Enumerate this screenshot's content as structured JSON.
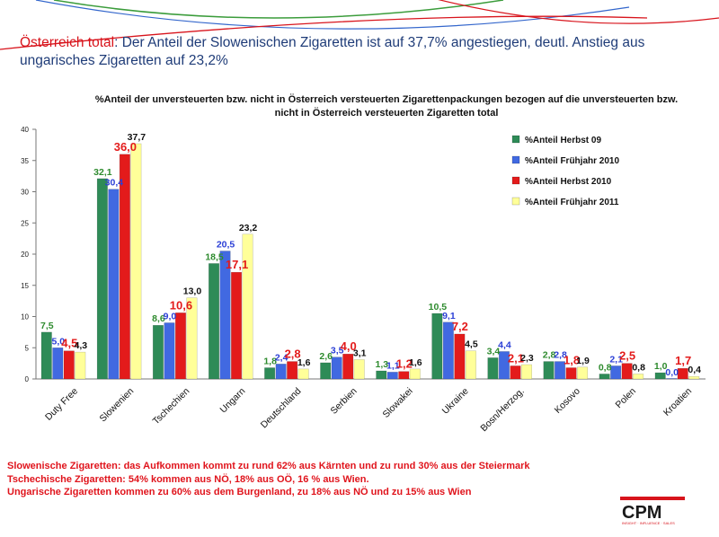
{
  "headline": {
    "accent": "Österreich total",
    "text": ": Der Anteil der Slowenischen Zigaretten  ist auf 37,7% angestiegen, deutl. Anstieg aus ungarisches Zigaretten auf 23,2%"
  },
  "notes": [
    "Slowenische Zigaretten: das Aufkommen kommt zu rund 62% aus Kärnten und zu rund 30% aus der Steiermark",
    "Tschechische Zigaretten: 54% kommen aus NÖ, 18% aus OÖ, 16 % aus Wien.",
    "Ungarische Zigaretten kommen zu 60% aus dem Burgenland, zu 18% aus NÖ  und zu 15% aus Wien"
  ],
  "logo": {
    "text": "CPM",
    "tagline": "INSIGHT · INFLUENCE · SALES"
  },
  "colors": {
    "headline": "#1f3c78",
    "accent": "#d8141c"
  },
  "chart_data": {
    "type": "bar",
    "title": "%Anteil der unversteuerten bzw. nicht in Österreich versteuerten Zigarettenpackungen bezogen auf die unversteuerten bzw. nicht in Österreich versteuerten Zigaretten total",
    "xlabel": "",
    "ylabel": "",
    "ylim": [
      0,
      40
    ],
    "yticks": [
      0,
      5,
      10,
      15,
      20,
      25,
      30,
      35,
      40
    ],
    "grid": false,
    "legend_position": "top-right",
    "categories": [
      "Duty Free",
      "Slowenien",
      "Tschechien",
      "Ungarn",
      "Deutschland",
      "Serbien",
      "Slowakei",
      "Ukraine",
      "Bosn/Herzog.",
      "Kosovo",
      "Polen",
      "Kroatien"
    ],
    "series": [
      {
        "name": "%Anteil Herbst 09",
        "color": "#2e8b57",
        "label_color": "#2e8b2e",
        "values": [
          7.5,
          32.1,
          8.6,
          18.5,
          1.8,
          2.6,
          1.3,
          10.5,
          3.4,
          2.8,
          0.8,
          1.0
        ],
        "labels": [
          "7,5",
          "32,1",
          "8,6",
          "18,5",
          "1,8",
          "2,6",
          "1,3",
          "10,5",
          "3,4",
          "2,8",
          "0,8",
          "1,0"
        ]
      },
      {
        "name": "%Anteil Frühjahr 2010",
        "color": "#4169e1",
        "label_color": "#2b3fd6",
        "values": [
          5.0,
          30.4,
          9.0,
          20.5,
          2.4,
          3.5,
          1.1,
          9.1,
          4.4,
          2.8,
          2.1,
          0.0
        ],
        "labels": [
          "5,0",
          "30,4",
          "9,0",
          "20,5",
          "2,4",
          "3,5",
          "1,1",
          "9,1",
          "4,4",
          "2,8",
          "2,1",
          "0,0"
        ]
      },
      {
        "name": "%Anteil Herbst 2010",
        "color": "#e31b1b",
        "label_color": "#e31b1b",
        "values": [
          4.5,
          36.0,
          10.6,
          17.1,
          2.8,
          4.0,
          1.2,
          7.2,
          2.1,
          1.8,
          2.5,
          1.7
        ],
        "labels": [
          "4,5",
          "36,0",
          "10,6",
          "17,1",
          "2,8",
          "4,0",
          "1,2",
          "7,2",
          "2,1",
          "1,8",
          "2,5",
          "1,7"
        ]
      },
      {
        "name": "%Anteil Frühjahr 2011",
        "color": "#ffff99",
        "label_color": "#111111",
        "values": [
          4.3,
          37.7,
          13.0,
          23.2,
          1.6,
          3.1,
          1.6,
          4.5,
          2.3,
          1.9,
          0.8,
          0.4
        ],
        "labels": [
          "4,3",
          "37,7",
          "13,0",
          "23,2",
          "1,6",
          "3,1",
          "1,6",
          "4,5",
          "2,3",
          "1,9",
          "0,8",
          "0,4"
        ]
      }
    ]
  }
}
